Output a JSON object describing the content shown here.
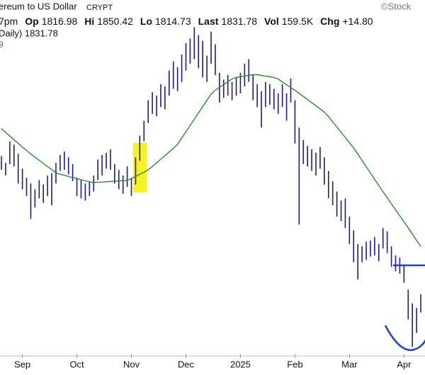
{
  "chart_data": {
    "type": "ohlc",
    "title": "ereum to US Dollar",
    "exchange": "CRYPT",
    "source": "©Stock",
    "time": "7pm",
    "stats": [
      {
        "label": "Op",
        "value": 1816.98
      },
      {
        "label": "Hi",
        "value": 1850.42
      },
      {
        "label": "Lo",
        "value": 1814.73
      },
      {
        "label": "Last",
        "value": 1831.78
      },
      {
        "label": "Vol",
        "value": "159.5K"
      },
      {
        "label": "Chg",
        "value": "+14.80"
      }
    ],
    "series_label": "Daily) 1831.78",
    "ma_label": "9",
    "color": "#1c1c8c",
    "ylim": [
      1338,
      4438
    ],
    "categories": [
      null,
      null,
      null,
      null,
      null,
      "Sep",
      null,
      null,
      null,
      null,
      null,
      null,
      null,
      null,
      null,
      null,
      null,
      null,
      "Oct",
      null,
      null,
      null,
      null,
      null,
      null,
      null,
      null,
      null,
      null,
      null,
      null,
      "Nov",
      null,
      null,
      null,
      null,
      null,
      null,
      null,
      null,
      null,
      null,
      null,
      null,
      "Dec",
      null,
      null,
      null,
      null,
      null,
      null,
      null,
      null,
      null,
      null,
      null,
      null,
      "2025",
      null,
      null,
      null,
      null,
      null,
      null,
      null,
      null,
      null,
      null,
      null,
      null,
      "Feb",
      null,
      null,
      null,
      null,
      null,
      null,
      null,
      null,
      null,
      null,
      null,
      null,
      "Mar",
      null,
      null,
      null,
      null,
      null,
      null,
      null,
      null,
      null,
      null,
      null,
      null,
      "Apr",
      null,
      null,
      null,
      null
    ],
    "high": [
      3070,
      3010,
      3200,
      3170,
      3090,
      2960,
      2880,
      2830,
      2780,
      2860,
      2820,
      2900,
      2920,
      3010,
      3080,
      3110,
      3060,
      3000,
      2880,
      2860,
      2830,
      2850,
      2900,
      3040,
      3080,
      3100,
      3130,
      3000,
      2950,
      2900,
      2980,
      2880,
      3060,
      3250,
      3380,
      3560,
      3630,
      3600,
      3700,
      3680,
      3820,
      3900,
      3850,
      3960,
      4060,
      4100,
      4200,
      4130,
      4080,
      3950,
      4160,
      4050,
      3800,
      3740,
      3780,
      3720,
      3760,
      3800,
      3880,
      3920,
      3780,
      3700,
      3640,
      3720,
      3700,
      3660,
      3620,
      3700,
      3620,
      3750,
      3560,
      3320,
      3210,
      3160,
      3130,
      3100,
      3150,
      3060,
      2940,
      2850,
      2760,
      2680,
      2700,
      2540,
      2420,
      2300,
      2280,
      2320,
      2330,
      2360,
      2300,
      2440,
      2410,
      2280,
      2200,
      2180,
      2120,
      1900,
      1780,
      1740,
      1860
    ],
    "low": [
      2950,
      2900,
      3000,
      2980,
      2830,
      2780,
      2720,
      2520,
      2620,
      2700,
      2660,
      2720,
      2640,
      2830,
      2940,
      2950,
      2910,
      2850,
      2720,
      2700,
      2680,
      2720,
      2760,
      2860,
      2900,
      2960,
      2950,
      2830,
      2780,
      2740,
      2800,
      2720,
      2820,
      3030,
      3200,
      3360,
      3440,
      3420,
      3500,
      3480,
      3600,
      3660,
      3640,
      3720,
      3820,
      3880,
      3920,
      3840,
      3760,
      3720,
      3880,
      3780,
      3540,
      3580,
      3600,
      3560,
      3600,
      3620,
      3680,
      3720,
      3560,
      3500,
      3320,
      3500,
      3520,
      3480,
      3440,
      3500,
      3380,
      3540,
      3180,
      2470,
      3000,
      2980,
      2940,
      2900,
      2960,
      2820,
      2700,
      2640,
      2540,
      2500,
      2440,
      2300,
      2140,
      1990,
      2140,
      2160,
      2190,
      2200,
      2150,
      2260,
      2220,
      2100,
      2060,
      2040,
      1960,
      1640,
      1400,
      1520,
      1700
    ],
    "moving_average": {
      "color": "#2e8b2e",
      "values": [
        3311,
        3279,
        3246,
        3213,
        3181,
        3148,
        3119,
        3089,
        3061,
        3034,
        3006,
        2979,
        2951,
        2924,
        2911,
        2902,
        2892,
        2882,
        2873,
        2863,
        2854,
        2844,
        2839,
        2841,
        2843,
        2846,
        2848,
        2850,
        2852,
        2855,
        2857,
        2874,
        2892,
        2911,
        2929,
        2948,
        2979,
        3010,
        3043,
        3074,
        3106,
        3138,
        3173,
        3228,
        3283,
        3338,
        3393,
        3448,
        3504,
        3559,
        3613,
        3648,
        3673,
        3697,
        3722,
        3746,
        3760,
        3766,
        3772,
        3778,
        3784,
        3784,
        3778,
        3771,
        3765,
        3759,
        3745,
        3720,
        3696,
        3671,
        3647,
        3621,
        3593,
        3566,
        3538,
        3511,
        3484,
        3456,
        3417,
        3371,
        3325,
        3279,
        3234,
        3187,
        3141,
        3088,
        3033,
        2978,
        2922,
        2867,
        2812,
        2758,
        2705,
        2652,
        2599,
        2547,
        2495,
        2443,
        2387,
        2332,
        2278
      ]
    }
  }
}
